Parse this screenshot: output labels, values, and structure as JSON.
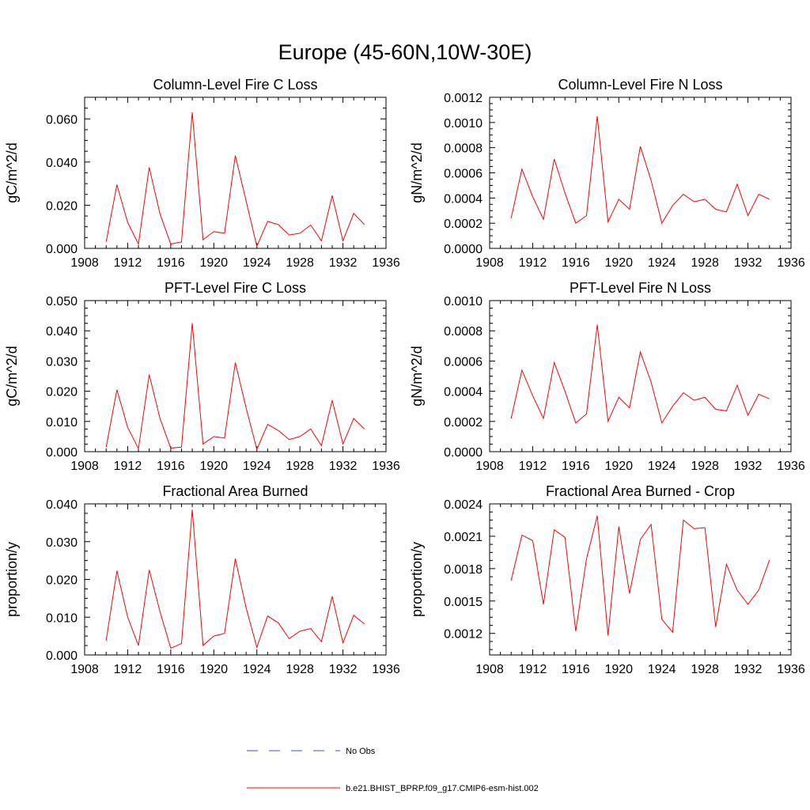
{
  "page": {
    "title": "Europe (45-60N,10W-30E)"
  },
  "colors": {
    "model": "#ff0000",
    "obs": "#3355cc",
    "axis": "#000000"
  },
  "legend": {
    "obs_label": "No Obs",
    "model_label": "b.e21.BHIST_BPRP.f09_g17.CMIP6-esm-hist.002"
  },
  "chart_data": [
    {
      "type": "line",
      "title": "Column-Level Fire C Loss",
      "ylabel": "gC/m^2/d",
      "xlim": [
        1908,
        1936
      ],
      "ylim": [
        0,
        0.07
      ],
      "xticks": [
        1908,
        1912,
        1916,
        1920,
        1924,
        1928,
        1932,
        1936
      ],
      "yticks": [
        0,
        0.02,
        0.04,
        0.06
      ],
      "ytick_labels": [
        "0.000",
        "0.020",
        "0.040",
        "0.060"
      ],
      "x": [
        1910,
        1911,
        1912,
        1913,
        1914,
        1915,
        1916,
        1917,
        1918,
        1919,
        1920,
        1921,
        1922,
        1923,
        1924,
        1925,
        1926,
        1927,
        1928,
        1929,
        1930,
        1931,
        1932,
        1933,
        1934
      ],
      "series": [
        {
          "name": "b.e21.BHIST_BPRP.f09_g17.CMIP6-esm-hist.002",
          "values": [
            0.003,
            0.0295,
            0.012,
            0.002,
            0.0375,
            0.016,
            0.002,
            0.003,
            0.063,
            0.004,
            0.0078,
            0.007,
            0.043,
            0.022,
            0.001,
            0.0125,
            0.011,
            0.0062,
            0.007,
            0.0108,
            0.0035,
            0.0245,
            0.0035,
            0.0162,
            0.011
          ]
        }
      ],
      "grid": false
    },
    {
      "type": "line",
      "title": "Column-Level Fire N Loss",
      "ylabel": "gN/m^2/d",
      "xlim": [
        1908,
        1936
      ],
      "ylim": [
        0,
        0.0012
      ],
      "xticks": [
        1908,
        1912,
        1916,
        1920,
        1924,
        1928,
        1932,
        1936
      ],
      "yticks": [
        0,
        0.0002,
        0.0004,
        0.0006,
        0.0008,
        0.001,
        0.0012
      ],
      "ytick_labels": [
        "0.0000",
        "0.0002",
        "0.0004",
        "0.0006",
        "0.0008",
        "0.0010",
        "0.0012"
      ],
      "x": [
        1910,
        1911,
        1912,
        1913,
        1914,
        1915,
        1916,
        1917,
        1918,
        1919,
        1920,
        1921,
        1922,
        1923,
        1924,
        1925,
        1926,
        1927,
        1928,
        1929,
        1930,
        1931,
        1932,
        1933,
        1934
      ],
      "series": [
        {
          "name": "b.e21.BHIST_BPRP.f09_g17.CMIP6-esm-hist.002",
          "values": [
            0.00024,
            0.00063,
            0.00041,
            0.00023,
            0.00071,
            0.00044,
            0.0002,
            0.00026,
            0.00105,
            0.00021,
            0.00039,
            0.00031,
            0.00081,
            0.00054,
            0.0002,
            0.00034,
            0.00043,
            0.00037,
            0.00039,
            0.00031,
            0.00029,
            0.00051,
            0.00026,
            0.00043,
            0.00039
          ]
        }
      ],
      "grid": false
    },
    {
      "type": "line",
      "title": "PFT-Level Fire C Loss",
      "ylabel": "gC/m^2/d",
      "xlim": [
        1908,
        1936
      ],
      "ylim": [
        0,
        0.05
      ],
      "xticks": [
        1908,
        1912,
        1916,
        1920,
        1924,
        1928,
        1932,
        1936
      ],
      "yticks": [
        0,
        0.01,
        0.02,
        0.03,
        0.04,
        0.05
      ],
      "ytick_labels": [
        "0.000",
        "0.010",
        "0.020",
        "0.030",
        "0.040",
        "0.050"
      ],
      "x": [
        1910,
        1911,
        1912,
        1913,
        1914,
        1915,
        1916,
        1917,
        1918,
        1919,
        1920,
        1921,
        1922,
        1923,
        1924,
        1925,
        1926,
        1927,
        1928,
        1929,
        1930,
        1931,
        1932,
        1933,
        1934
      ],
      "series": [
        {
          "name": "b.e21.BHIST_BPRP.f09_g17.CMIP6-esm-hist.002",
          "values": [
            0.0015,
            0.0205,
            0.008,
            0.001,
            0.0255,
            0.011,
            0.0012,
            0.0015,
            0.0425,
            0.0025,
            0.005,
            0.0045,
            0.0295,
            0.0145,
            0.0008,
            0.009,
            0.007,
            0.004,
            0.005,
            0.0075,
            0.002,
            0.017,
            0.0025,
            0.011,
            0.0075
          ]
        }
      ],
      "grid": false
    },
    {
      "type": "line",
      "title": "PFT-Level Fire N Loss",
      "ylabel": "gN/m^2/d",
      "xlim": [
        1908,
        1936
      ],
      "ylim": [
        0,
        0.001
      ],
      "xticks": [
        1908,
        1912,
        1916,
        1920,
        1924,
        1928,
        1932,
        1936
      ],
      "yticks": [
        0,
        0.0002,
        0.0004,
        0.0006,
        0.0008,
        0.001
      ],
      "ytick_labels": [
        "0.0000",
        "0.0002",
        "0.0004",
        "0.0006",
        "0.0008",
        "0.0010"
      ],
      "x": [
        1910,
        1911,
        1912,
        1913,
        1914,
        1915,
        1916,
        1917,
        1918,
        1919,
        1920,
        1921,
        1922,
        1923,
        1924,
        1925,
        1926,
        1927,
        1928,
        1929,
        1930,
        1931,
        1932,
        1933,
        1934
      ],
      "series": [
        {
          "name": "b.e21.BHIST_BPRP.f09_g17.CMIP6-esm-hist.002",
          "values": [
            0.00022,
            0.00054,
            0.00037,
            0.00022,
            0.00059,
            0.0004,
            0.00019,
            0.00025,
            0.00084,
            0.0002,
            0.00036,
            0.00029,
            0.00066,
            0.00046,
            0.00019,
            0.0003,
            0.00039,
            0.00034,
            0.00036,
            0.00028,
            0.00027,
            0.00044,
            0.00024,
            0.00038,
            0.00035
          ]
        }
      ],
      "grid": false
    },
    {
      "type": "line",
      "title": "Fractional Area Burned",
      "ylabel": "proportion/y",
      "xlim": [
        1908,
        1936
      ],
      "ylim": [
        0,
        0.04
      ],
      "xticks": [
        1908,
        1912,
        1916,
        1920,
        1924,
        1928,
        1932,
        1936
      ],
      "yticks": [
        0,
        0.01,
        0.02,
        0.03,
        0.04
      ],
      "ytick_labels": [
        "0.000",
        "0.010",
        "0.020",
        "0.030",
        "0.040"
      ],
      "x": [
        1910,
        1911,
        1912,
        1913,
        1914,
        1915,
        1916,
        1917,
        1918,
        1919,
        1920,
        1921,
        1922,
        1923,
        1924,
        1925,
        1926,
        1927,
        1928,
        1929,
        1930,
        1931,
        1932,
        1933,
        1934
      ],
      "series": [
        {
          "name": "b.e21.BHIST_BPRP.f09_g17.CMIP6-esm-hist.002",
          "values": [
            0.0038,
            0.0223,
            0.01,
            0.0025,
            0.0225,
            0.0115,
            0.0018,
            0.003,
            0.0385,
            0.0025,
            0.005,
            0.0057,
            0.0255,
            0.0125,
            0.002,
            0.0103,
            0.0085,
            0.0043,
            0.0063,
            0.007,
            0.0035,
            0.0155,
            0.0032,
            0.0105,
            0.0082
          ]
        }
      ],
      "grid": false
    },
    {
      "type": "line",
      "title": "Fractional Area Burned - Crop",
      "ylabel": "proportion/y",
      "xlim": [
        1908,
        1936
      ],
      "ylim": [
        0.001,
        0.0024
      ],
      "xticks": [
        1908,
        1912,
        1916,
        1920,
        1924,
        1928,
        1932,
        1936
      ],
      "yticks": [
        0.0012,
        0.0015,
        0.0018,
        0.0021,
        0.0024
      ],
      "ytick_labels": [
        "0.0012",
        "0.0015",
        "0.0018",
        "0.0021",
        "0.0024"
      ],
      "x": [
        1910,
        1911,
        1912,
        1913,
        1914,
        1915,
        1916,
        1917,
        1918,
        1919,
        1920,
        1921,
        1922,
        1923,
        1924,
        1925,
        1926,
        1927,
        1928,
        1929,
        1930,
        1931,
        1932,
        1933,
        1934
      ],
      "series": [
        {
          "name": "b.e21.BHIST_BPRP.f09_g17.CMIP6-esm-hist.002",
          "values": [
            0.00169,
            0.00211,
            0.00206,
            0.00147,
            0.00216,
            0.00209,
            0.00122,
            0.00189,
            0.00229,
            0.00118,
            0.00219,
            0.00157,
            0.00207,
            0.00221,
            0.00133,
            0.00121,
            0.00225,
            0.00217,
            0.00218,
            0.00126,
            0.00184,
            0.0016,
            0.00147,
            0.0016,
            0.00188
          ]
        }
      ],
      "grid": false
    }
  ]
}
